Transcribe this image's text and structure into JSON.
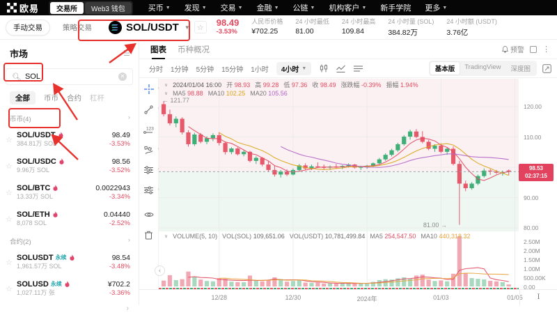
{
  "colors": {
    "down": "#e34a5f",
    "up": "#3fae77",
    "candle_down": "#e6596b",
    "candle_up": "#3fae77",
    "vol_down": "#f2a8b2",
    "vol_up": "#a8d9bf",
    "ma5": "#e34a5f",
    "ma10": "#d9a514",
    "ma20": "#b264c8",
    "badge": "#e2425e",
    "annotation": "#e8312c",
    "tint_up": "#fbf0f2",
    "tint_down": "#eef7f2",
    "grid": "#ececec"
  },
  "topnav": {
    "logo_text": "欧易",
    "exchange_tab": "交易所",
    "wallet_tab": "Web3 钱包",
    "items": [
      {
        "label": "买币",
        "chevron": true
      },
      {
        "label": "发现",
        "chevron": true
      },
      {
        "label": "交易",
        "chevron": true
      },
      {
        "label": "金融",
        "chevron": true
      },
      {
        "label": "公链",
        "chevron": true
      },
      {
        "label": "机构客户",
        "chevron": true
      },
      {
        "label": "新手学院",
        "chevron": false
      },
      {
        "label": "更多",
        "chevron": true
      }
    ]
  },
  "subheader": {
    "manual_trade": "手动交易",
    "strategy_trade": "策略交易",
    "pair": "SOL/USDT",
    "price": "98.49",
    "change": "-3.53%",
    "stats": [
      {
        "label": "人民币价格",
        "value": "¥702.25"
      },
      {
        "label": "24 小时最低",
        "value": "81.00"
      },
      {
        "label": "24 小时最高",
        "value": "109.84"
      },
      {
        "label": "24 小时量 (SOL)",
        "value": "384.82万"
      },
      {
        "label": "24 小时额 (USDT)",
        "value": "3.76亿"
      }
    ]
  },
  "sidebar": {
    "title": "市场",
    "search_value": "SOL",
    "tabs": [
      "全部",
      "币币",
      "合约",
      "杠杆"
    ],
    "sections": [
      {
        "header": "币币(4)",
        "items": [
          {
            "pair": "SOL/USDT",
            "hot": true,
            "sub": "384.81万 SOL",
            "price": "98.49",
            "change": "-3.53%"
          },
          {
            "pair": "SOL/USDC",
            "hot": true,
            "sub": "9.96万 SOL",
            "price": "98.56",
            "change": "-3.52%"
          },
          {
            "pair": "SOL/BTC",
            "hot": true,
            "sub": "13.33万 SOL",
            "price": "0.0022943",
            "change": "-3.34%"
          },
          {
            "pair": "SOL/ETH",
            "hot": true,
            "sub": "8,078 SOL",
            "price": "0.04440",
            "change": "-2.52%"
          }
        ]
      },
      {
        "header": "合约(2)",
        "items": [
          {
            "pair": "SOLUSDT",
            "tag": "永续",
            "hot": true,
            "sub": "1,961.57万 SOL",
            "price": "98.54",
            "change": "-3.48%"
          },
          {
            "pair": "SOLUSD",
            "tag": "永续",
            "hot": true,
            "sub": "1,027.11万 张",
            "price": "¥702.2",
            "change": "-3.36%"
          }
        ]
      }
    ],
    "more_arrow": "›"
  },
  "chart_header": {
    "tab_chart": "图表",
    "tab_overview": "币种概况",
    "alert_label": "预警"
  },
  "chart_toolbar": {
    "intervals": [
      "分时",
      "1分钟",
      "5分钟",
      "15分钟",
      "1小时"
    ],
    "active_interval": "4小时",
    "views": [
      "基本版",
      "TradingView",
      "深度图"
    ],
    "active_view_index": 0
  },
  "chart_info": {
    "time": "2024/01/04 16:00",
    "ohlc": [
      {
        "label": "开",
        "value": "98.93"
      },
      {
        "label": "高",
        "value": "99.28"
      },
      {
        "label": "低",
        "value": "97.36"
      },
      {
        "label": "收",
        "value": "98.49"
      },
      {
        "label": "涨跌幅",
        "value": "-0.39%"
      },
      {
        "label": "振幅",
        "value": "1.94%"
      }
    ],
    "ma": [
      {
        "label": "MA5",
        "value": "98.88",
        "color": "#e34a5f"
      },
      {
        "label": "MA10",
        "value": "102.25",
        "color": "#d9a514"
      },
      {
        "label": "MA20",
        "value": "105.56",
        "color": "#b264c8"
      }
    ],
    "volume": [
      {
        "label": "VOLUME(5, 10)",
        "value": "",
        "color": "#666666"
      },
      {
        "label": "VOL(SOL)",
        "value": "109,651.06",
        "color": "#666666"
      },
      {
        "label": "VOL(USDT)",
        "value": "10,781,499.84",
        "color": "#666666"
      },
      {
        "label": "MA5",
        "value": "254,547.50",
        "color": "#e34a5f"
      },
      {
        "label": "MA10",
        "value": "440,318.32",
        "color": "#e8a33d"
      }
    ]
  },
  "chart_data": {
    "type": "candlestick+volume",
    "interval": "4小时",
    "x_labels": [
      "12/28",
      "12/30",
      "2024年",
      "01/03",
      "01/05"
    ],
    "x_label_indices": [
      9,
      21,
      33,
      45,
      57
    ],
    "price_axis_ticks": [
      "120.00",
      "110.00",
      "100.00",
      "90.00",
      "80.00"
    ],
    "price_axis_values": [
      120,
      110,
      100,
      90,
      80
    ],
    "volume_axis_ticks": [
      "2.50M",
      "2.00M",
      "1.50M",
      "1.00M",
      "500.00K",
      "0.00"
    ],
    "current_price": "98.53",
    "current_price_value": 98.53,
    "countdown": "02:37:15",
    "high_marker": "121.77",
    "high_marker_value": 121.77,
    "low_marker": "81.00",
    "low_marker_value": 81.0,
    "low_marker_candle": 48,
    "candles_ohlcv_K": [
      [
        120.8,
        121.77,
        116.8,
        117.5,
        320
      ],
      [
        117.5,
        119.0,
        113.8,
        114.5,
        620
      ],
      [
        114.5,
        116.8,
        113.2,
        116.0,
        350
      ],
      [
        116.0,
        116.5,
        110.8,
        111.5,
        400
      ],
      [
        111.5,
        112.2,
        106.8,
        107.6,
        820
      ],
      [
        107.6,
        111.4,
        107.0,
        110.8,
        520
      ],
      [
        110.8,
        111.3,
        107.9,
        108.4,
        380
      ],
      [
        108.4,
        110.2,
        107.6,
        109.6,
        300
      ],
      [
        109.6,
        111.2,
        108.6,
        110.6,
        280
      ],
      [
        110.6,
        111.6,
        107.2,
        108.0,
        460
      ],
      [
        108.0,
        108.5,
        104.2,
        105.0,
        420
      ],
      [
        105.0,
        106.6,
        104.3,
        106.2,
        260
      ],
      [
        106.2,
        106.6,
        103.9,
        104.3,
        240
      ],
      [
        104.3,
        105.6,
        103.6,
        105.1,
        230
      ],
      [
        105.1,
        105.4,
        101.6,
        102.1,
        600
      ],
      [
        102.1,
        103.6,
        101.1,
        103.1,
        310
      ],
      [
        103.1,
        103.4,
        100.3,
        100.9,
        280
      ],
      [
        100.9,
        102.1,
        98.6,
        99.1,
        350
      ],
      [
        99.1,
        100.6,
        96.9,
        97.6,
        500
      ],
      [
        97.6,
        99.1,
        96.6,
        98.6,
        410
      ],
      [
        98.6,
        99.3,
        97.1,
        97.6,
        260
      ],
      [
        97.6,
        99.6,
        97.3,
        99.1,
        300
      ],
      [
        99.1,
        101.1,
        98.6,
        100.6,
        330
      ],
      [
        100.6,
        101.3,
        99.1,
        99.6,
        210
      ],
      [
        99.6,
        100.9,
        99.1,
        100.3,
        190
      ],
      [
        100.3,
        101.6,
        99.9,
        100.1,
        220
      ],
      [
        100.1,
        100.9,
        99.3,
        99.9,
        160
      ],
      [
        99.9,
        100.6,
        99.1,
        100.2,
        170
      ],
      [
        100.2,
        101.1,
        99.6,
        100.0,
        150
      ],
      [
        100.0,
        100.7,
        99.4,
        100.4,
        160
      ],
      [
        100.4,
        101.3,
        99.9,
        100.9,
        180
      ],
      [
        100.9,
        101.1,
        99.6,
        99.9,
        160
      ],
      [
        99.9,
        100.5,
        99.1,
        100.1,
        170
      ],
      [
        100.1,
        100.8,
        99.5,
        100.5,
        180
      ],
      [
        100.5,
        101.6,
        100.1,
        101.3,
        250
      ],
      [
        101.3,
        103.1,
        100.9,
        102.6,
        350
      ],
      [
        102.6,
        104.6,
        102.1,
        104.1,
        400
      ],
      [
        104.1,
        106.1,
        103.6,
        105.6,
        380
      ],
      [
        105.6,
        108.1,
        105.1,
        107.6,
        450
      ],
      [
        107.6,
        110.6,
        107.1,
        110.1,
        500
      ],
      [
        110.1,
        112.4,
        109.1,
        111.8,
        430
      ],
      [
        111.8,
        112.6,
        109.6,
        110.0,
        600
      ],
      [
        110.0,
        111.9,
        107.9,
        108.4,
        650
      ],
      [
        108.4,
        109.0,
        105.6,
        106.1,
        380
      ],
      [
        106.1,
        107.6,
        105.1,
        107.1,
        300
      ],
      [
        107.1,
        107.9,
        104.6,
        105.1,
        330
      ],
      [
        105.1,
        106.6,
        104.1,
        106.1,
        280
      ],
      [
        106.1,
        106.9,
        100.6,
        101.1,
        700
      ],
      [
        101.1,
        102.1,
        81.0,
        94.6,
        2850
      ],
      [
        94.6,
        95.6,
        92.1,
        93.1,
        750
      ],
      [
        93.1,
        95.1,
        92.6,
        94.6,
        460
      ],
      [
        94.6,
        97.6,
        94.1,
        97.1,
        420
      ],
      [
        97.1,
        99.6,
        96.6,
        98.9,
        390
      ],
      [
        98.9,
        99.4,
        97.5,
        98.6,
        310
      ],
      [
        98.6,
        99.1,
        97.8,
        98.2,
        280
      ],
      [
        98.2,
        98.9,
        97.2,
        98.3,
        240
      ],
      [
        98.93,
        99.28,
        97.36,
        98.49,
        110
      ]
    ]
  },
  "misc": {
    "corner_tool": "I",
    "collapse_arrow": "‹",
    "chevron_down": "∨",
    "section_arrow": "›"
  }
}
